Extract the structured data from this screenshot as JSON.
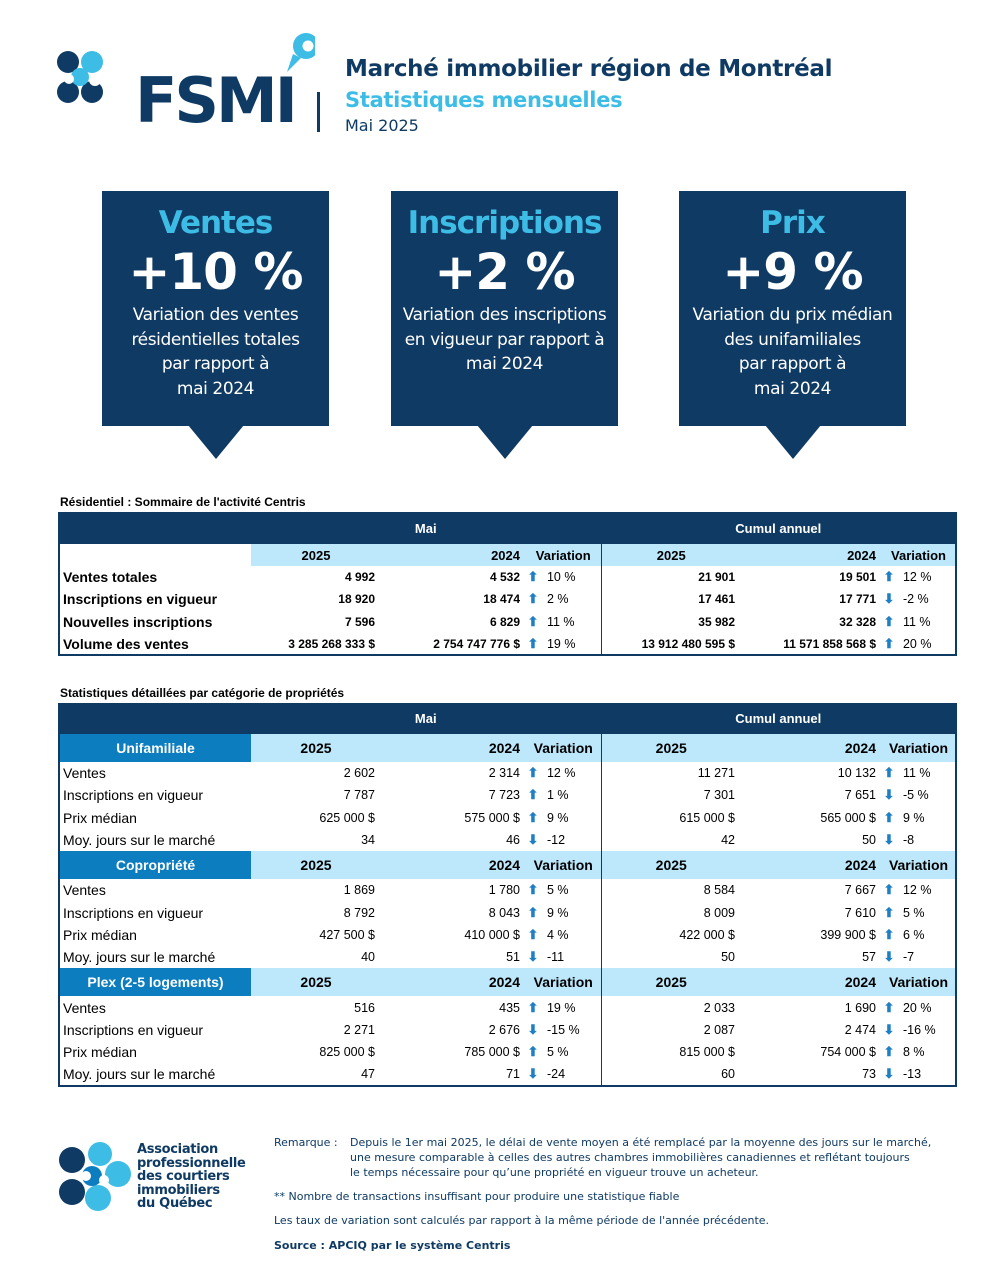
{
  "header": {
    "logo_text": "FSMI",
    "title": "Marché immobilier région de Montréal",
    "subtitle": "Statistiques mensuelles",
    "date": "Mai 2025"
  },
  "kpis": [
    {
      "title": "Ventes",
      "value": "+10 %",
      "desc": [
        "Variation des ventes",
        "résidentielles totales",
        "par rapport à",
        "mai 2024"
      ]
    },
    {
      "title": "Inscriptions",
      "value": "+2 %",
      "desc": [
        "Variation des inscriptions",
        "en vigueur par rapport à",
        "mai 2024"
      ]
    },
    {
      "title": "Prix",
      "value": "+9 %",
      "desc": [
        "Variation du prix médian",
        "des unifamiliales",
        "par rapport à",
        "mai 2024"
      ]
    }
  ],
  "summary": {
    "title": "Résidentiel : Sommaire de l'activité Centris",
    "period_mai": "Mai",
    "period_cumul": "Cumul annuel",
    "col_2025": "2025",
    "col_2024": "2024",
    "col_var": "Variation",
    "rows": [
      {
        "label": "Ventes totales",
        "m25": "4 992",
        "m24": "4 532",
        "m_dir": "up",
        "m_var": "10 %",
        "c25": "21 901",
        "c24": "19 501",
        "c_dir": "up",
        "c_var": "12 %"
      },
      {
        "label": "Inscriptions en vigueur",
        "m25": "18 920",
        "m24": "18 474",
        "m_dir": "up",
        "m_var": "2 %",
        "c25": "17 461",
        "c24": "17 771",
        "c_dir": "down",
        "c_var": "-2 %"
      },
      {
        "label": "Nouvelles inscriptions",
        "m25": "7 596",
        "m24": "6 829",
        "m_dir": "up",
        "m_var": "11 %",
        "c25": "35 982",
        "c24": "32 328",
        "c_dir": "up",
        "c_var": "11 %"
      },
      {
        "label": "Volume des ventes",
        "m25": "3 285 268 333  $",
        "m24": "2 754 747 776  $",
        "m_dir": "up",
        "m_var": "19 %",
        "c25": "13 912 480 595  $",
        "c24": "11 571 858 568  $",
        "c_dir": "up",
        "c_var": "20 %"
      }
    ]
  },
  "detail": {
    "title": "Statistiques détaillées par catégorie de propriétés",
    "period_mai": "Mai",
    "period_cumul": "Cumul annuel",
    "col_2025": "2025",
    "col_2024": "2024",
    "col_var": "Variation",
    "categories": [
      {
        "name": "Unifamiliale",
        "rows": [
          {
            "label": "Ventes",
            "m25": "2 602",
            "m24": "2 314",
            "m_dir": "up",
            "m_var": "12 %",
            "c25": "11 271",
            "c24": "10 132",
            "c_dir": "up",
            "c_var": "11 %"
          },
          {
            "label": "Inscriptions en vigueur",
            "m25": "7 787",
            "m24": "7 723",
            "m_dir": "up",
            "m_var": "1 %",
            "c25": "7 301",
            "c24": "7 651",
            "c_dir": "down",
            "c_var": "-5 %"
          },
          {
            "label": "Prix médian",
            "m25": "625 000 $",
            "m24": "575 000 $",
            "m_dir": "up",
            "m_var": "9 %",
            "c25": "615 000 $",
            "c24": "565 000 $",
            "c_dir": "up",
            "c_var": "9 %"
          },
          {
            "label": "Moy. jours sur le marché",
            "m25": "34",
            "m24": "46",
            "m_dir": "down",
            "m_var": "-12",
            "c25": "42",
            "c24": "50",
            "c_dir": "down",
            "c_var": "-8"
          }
        ]
      },
      {
        "name": "Copropriété",
        "rows": [
          {
            "label": "Ventes",
            "m25": "1 869",
            "m24": "1 780",
            "m_dir": "up",
            "m_var": "5 %",
            "c25": "8 584",
            "c24": "7 667",
            "c_dir": "up",
            "c_var": "12 %"
          },
          {
            "label": "Inscriptions en vigueur",
            "m25": "8 792",
            "m24": "8 043",
            "m_dir": "up",
            "m_var": "9 %",
            "c25": "8 009",
            "c24": "7 610",
            "c_dir": "up",
            "c_var": "5 %"
          },
          {
            "label": "Prix médian",
            "m25": "427 500 $",
            "m24": "410 000 $",
            "m_dir": "up",
            "m_var": "4 %",
            "c25": "422 000 $",
            "c24": "399 900 $",
            "c_dir": "up",
            "c_var": "6 %"
          },
          {
            "label": "Moy. jours sur le marché",
            "m25": "40",
            "m24": "51",
            "m_dir": "down",
            "m_var": "-11",
            "c25": "50",
            "c24": "57",
            "c_dir": "down",
            "c_var": "-7"
          }
        ]
      },
      {
        "name": "Plex (2-5 logements)",
        "rows": [
          {
            "label": "Ventes",
            "m25": "516",
            "m24": "435",
            "m_dir": "up",
            "m_var": "19 %",
            "c25": "2 033",
            "c24": "1 690",
            "c_dir": "up",
            "c_var": "20 %"
          },
          {
            "label": "Inscriptions en vigueur",
            "m25": "2 271",
            "m24": "2 676",
            "m_dir": "down",
            "m_var": "-15 %",
            "c25": "2 087",
            "c24": "2 474",
            "c_dir": "down",
            "c_var": "-16 %"
          },
          {
            "label": "Prix médian",
            "m25": "825 000 $",
            "m24": "785 000 $",
            "m_dir": "up",
            "m_var": "5 %",
            "c25": "815 000 $",
            "c24": "754 000 $",
            "c_dir": "up",
            "c_var": "8 %"
          },
          {
            "label": "Moy. jours sur le marché",
            "m25": "47",
            "m24": "71",
            "m_dir": "down",
            "m_var": "-24",
            "c25": "60",
            "c24": "73",
            "c_dir": "down",
            "c_var": "-13"
          }
        ]
      }
    ]
  },
  "footer": {
    "org_name": [
      "Association",
      "professionnelle",
      "des courtiers",
      "immobiliers",
      "du Québec"
    ],
    "remark_label": "Remarque :",
    "remark_lines": [
      "Depuis le 1er mai 2025, le délai de vente moyen a été remplacé par la moyenne des jours sur le marché,",
      "une mesure comparable à celles des autres chambres immobilières canadiennes et reflétant toujours",
      "le temps nécessaire pour qu’une propriété en vigueur trouve un acheteur."
    ],
    "note_insufficient": "** Nombre de transactions insuffisant pour produire une statistique fiable",
    "note_variation": "Les taux de variation sont calculés par rapport à la même période de l'année précédente.",
    "source": "Source : APCIQ par le système Centris"
  },
  "colors": {
    "navy": "#0f3a63",
    "cyan": "#3dbde6",
    "mid_blue": "#0c7dbf",
    "light_blue": "#bde8fb"
  }
}
